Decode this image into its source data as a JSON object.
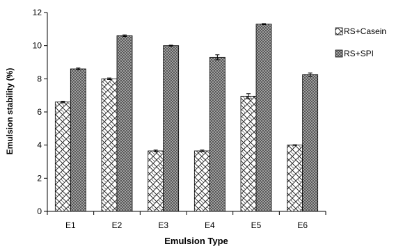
{
  "chart_data": {
    "type": "bar",
    "title": "",
    "xlabel": "Emulsion Type",
    "ylabel": "Emulsion stability (%)",
    "ylim": [
      0,
      12
    ],
    "yticks": [
      "0",
      "2",
      "4",
      "6",
      "8",
      "10",
      "12"
    ],
    "categories": [
      "E1",
      "E2",
      "E3",
      "E4",
      "E5",
      "E6"
    ],
    "series": [
      {
        "name": "RS+Casein",
        "values": [
          6.6,
          8.0,
          3.65,
          3.65,
          6.95,
          4.0
        ],
        "errors": [
          0.05,
          0.05,
          0.05,
          0.05,
          0.15,
          0.02
        ],
        "pattern": "diamond-lattice-light"
      },
      {
        "name": "RS+SPI",
        "values": [
          8.6,
          10.6,
          10.0,
          9.3,
          11.3,
          8.25
        ],
        "errors": [
          0.05,
          0.05,
          0.03,
          0.15,
          0.03,
          0.1
        ],
        "pattern": "crosshatch-dark"
      }
    ],
    "grid": false,
    "legend": "right"
  }
}
